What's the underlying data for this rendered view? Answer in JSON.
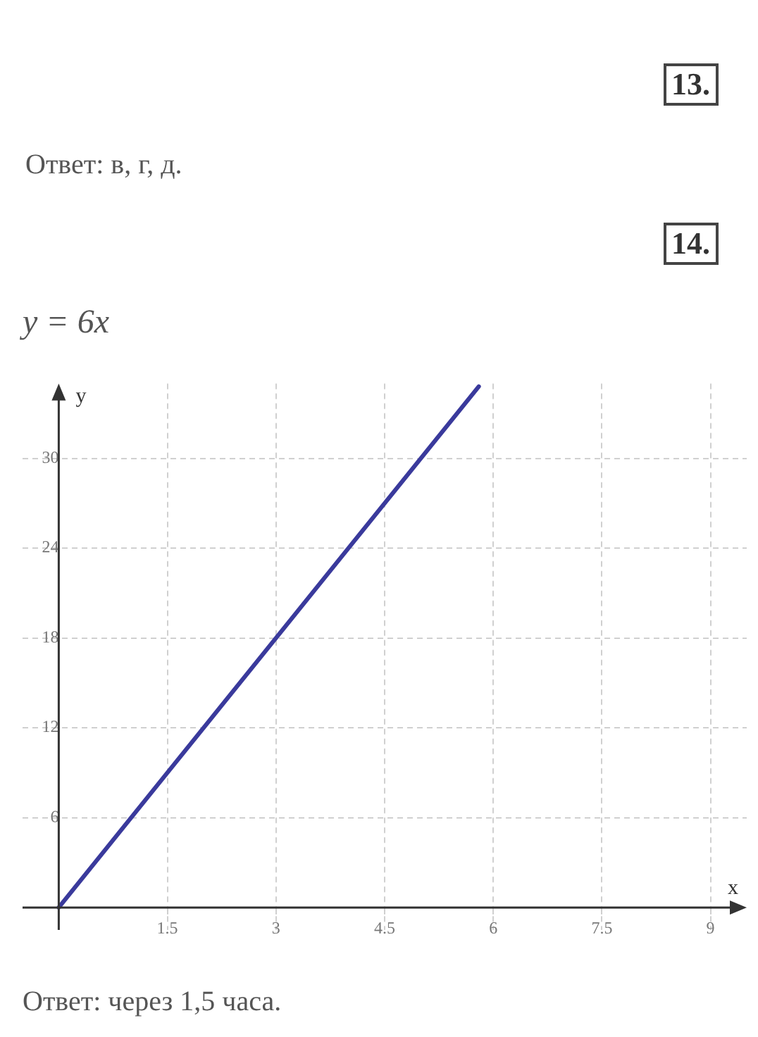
{
  "chart_data": {
    "type": "line",
    "title": "y = 6x",
    "xlabel": "x",
    "ylabel": "y",
    "annotations": [
      "13.",
      "Ответ: в, г, д.",
      "14.",
      "Ответ: через 1,5 часа."
    ],
    "series": [
      {
        "color": "#3a3a9c",
        "x": [
          0,
          5.8
        ],
        "values": [
          0,
          34.8
        ]
      }
    ],
    "xlim": [
      -0.5,
      9.5
    ],
    "ylim": [
      -1.5,
      35
    ],
    "xticks": [
      1.5,
      3,
      4.5,
      6,
      7.5,
      9
    ],
    "yticks": [
      6,
      12,
      18,
      24,
      30
    ],
    "grid": true,
    "legend": false,
    "marker": "none",
    "line_style": "solid"
  }
}
